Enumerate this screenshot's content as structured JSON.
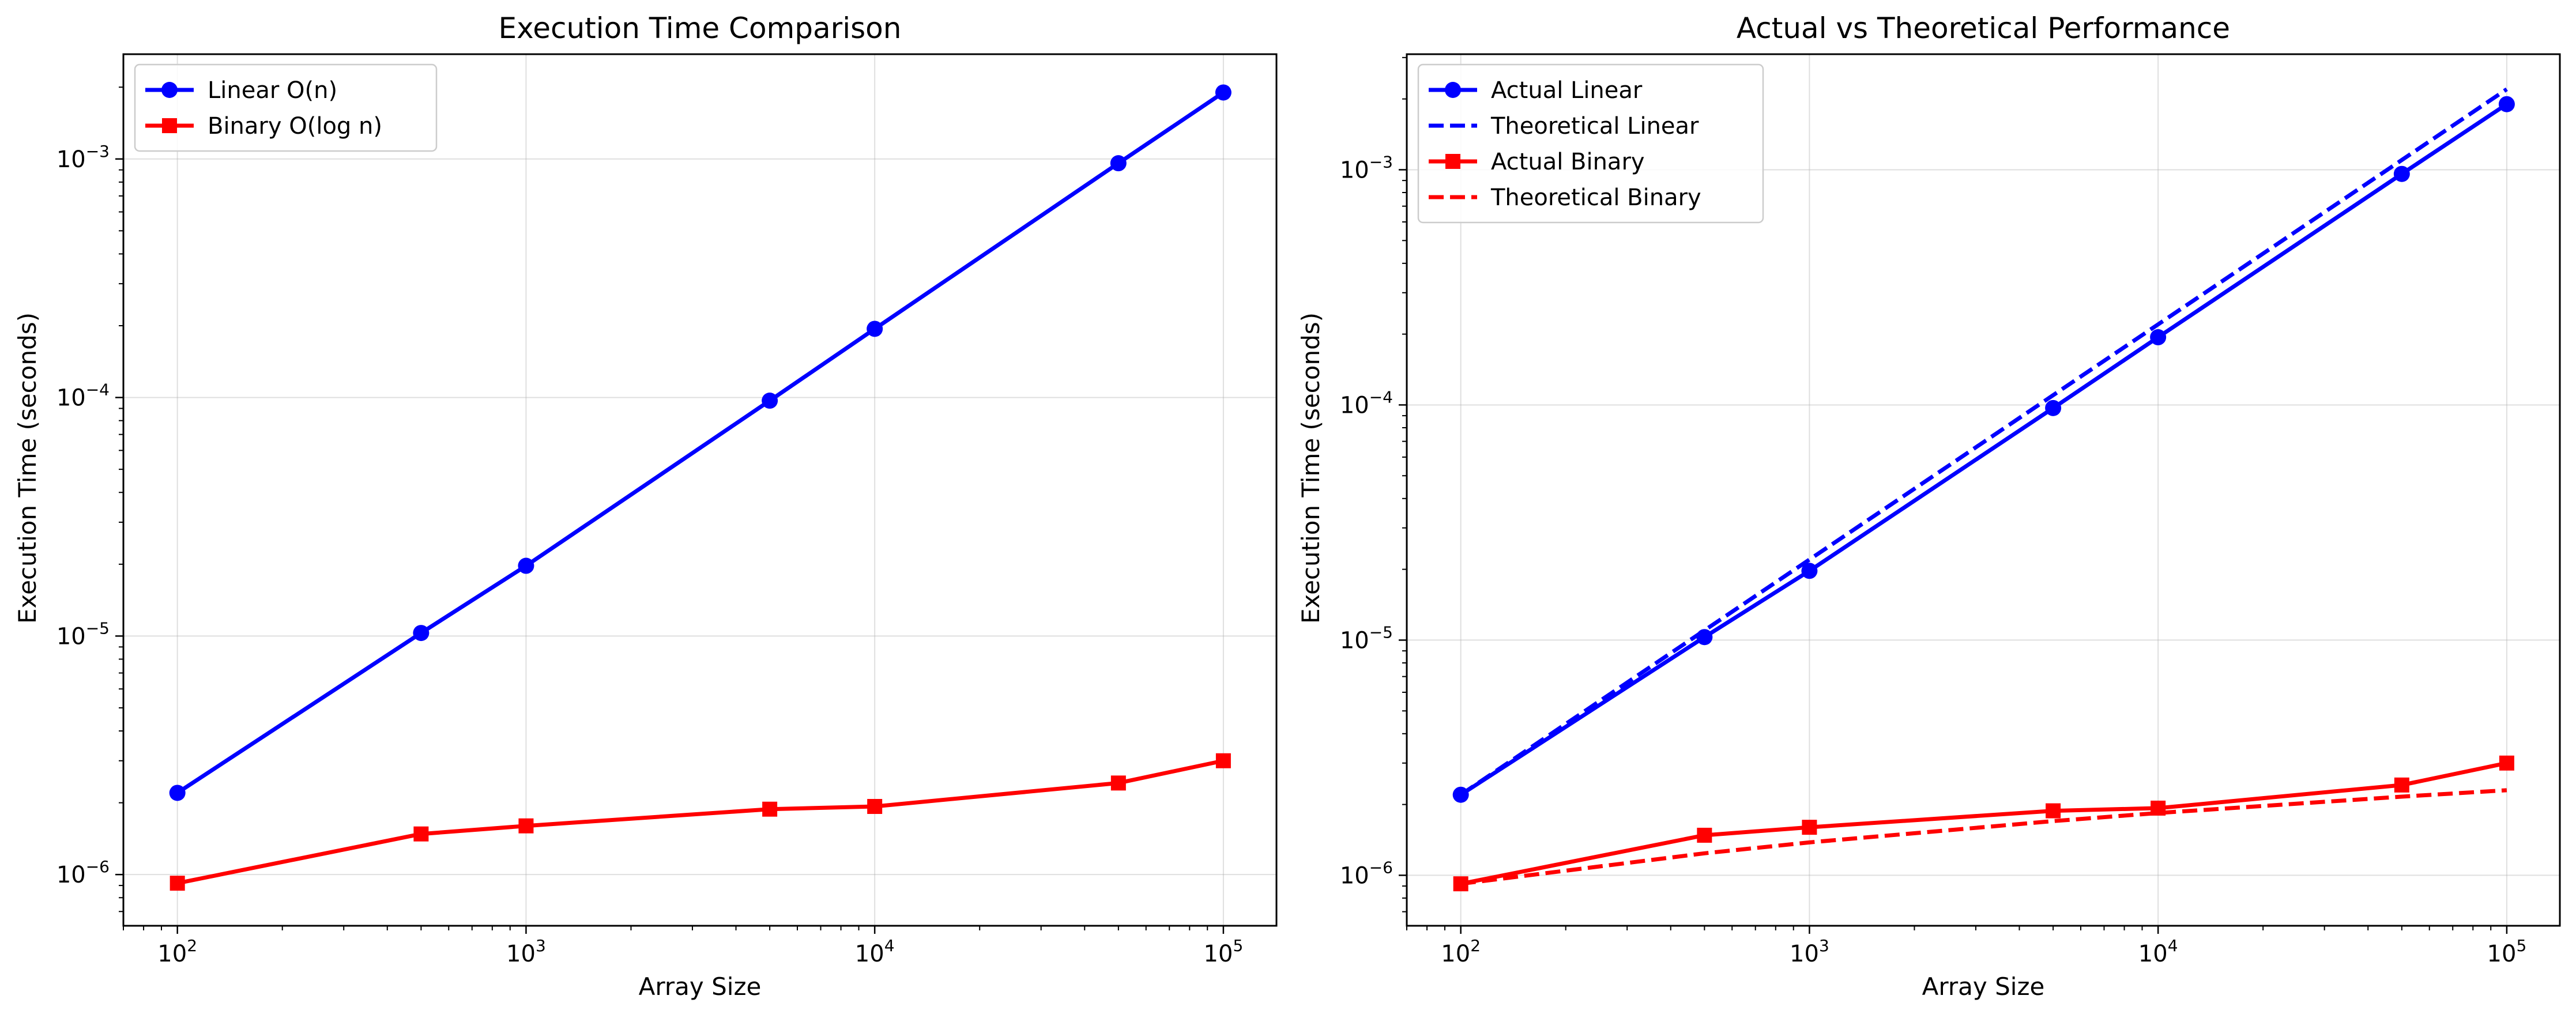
{
  "chart_data": [
    {
      "type": "line",
      "title": "Execution Time Comparison",
      "xlabel": "Array Size",
      "ylabel": "Execution Time (seconds)",
      "xscale": "log",
      "yscale": "log",
      "xlim": [
        70,
        142000
      ],
      "ylim": [
        6.1e-07,
        0.00275
      ],
      "grid": true,
      "legend_position": "upper-left",
      "x": [
        100,
        500,
        1000,
        5000,
        10000,
        50000,
        100000
      ],
      "xticks": [
        {
          "base": "10",
          "exp": "2",
          "value": 100
        },
        {
          "base": "10",
          "exp": "3",
          "value": 1000
        },
        {
          "base": "10",
          "exp": "4",
          "value": 10000
        },
        {
          "base": "10",
          "exp": "5",
          "value": 100000
        }
      ],
      "yticks": [
        {
          "base": "10",
          "exp": "−6",
          "value": 1e-06
        },
        {
          "base": "10",
          "exp": "−5",
          "value": 1e-05
        },
        {
          "base": "10",
          "exp": "−4",
          "value": 0.0001
        },
        {
          "base": "10",
          "exp": "−3",
          "value": 0.001
        }
      ],
      "series": [
        {
          "name": "Linear O(n)",
          "color": "#0000ff",
          "marker": "circle",
          "linestyle": "solid",
          "values": [
            2.2e-06,
            1.03e-05,
            1.97e-05,
            9.7e-05,
            0.000194,
            0.00096,
            0.0019
          ]
        },
        {
          "name": "Binary O(log n)",
          "color": "#ff0000",
          "marker": "square",
          "linestyle": "solid",
          "values": [
            9.2e-07,
            1.48e-06,
            1.6e-06,
            1.88e-06,
            1.93e-06,
            2.42e-06,
            3e-06
          ]
        }
      ]
    },
    {
      "type": "line",
      "title": "Actual vs Theoretical Performance",
      "xlabel": "Array Size",
      "ylabel": "Execution Time (seconds)",
      "xscale": "log",
      "yscale": "log",
      "xlim": [
        70,
        142000
      ],
      "ylim": [
        6.1e-07,
        0.0031
      ],
      "grid": true,
      "legend_position": "upper-left",
      "x": [
        100,
        500,
        1000,
        5000,
        10000,
        50000,
        100000
      ],
      "xticks": [
        {
          "base": "10",
          "exp": "2",
          "value": 100
        },
        {
          "base": "10",
          "exp": "3",
          "value": 1000
        },
        {
          "base": "10",
          "exp": "4",
          "value": 10000
        },
        {
          "base": "10",
          "exp": "5",
          "value": 100000
        }
      ],
      "yticks": [
        {
          "base": "10",
          "exp": "−6",
          "value": 1e-06
        },
        {
          "base": "10",
          "exp": "−5",
          "value": 1e-05
        },
        {
          "base": "10",
          "exp": "−4",
          "value": 0.0001
        },
        {
          "base": "10",
          "exp": "−3",
          "value": 0.001
        }
      ],
      "series": [
        {
          "name": "Actual Linear",
          "color": "#0000ff",
          "marker": "circle",
          "linestyle": "solid",
          "values": [
            2.2e-06,
            1.03e-05,
            1.97e-05,
            9.7e-05,
            0.000194,
            0.00096,
            0.0019
          ]
        },
        {
          "name": "Theoretical Linear",
          "color": "#0000ff",
          "marker": "none",
          "linestyle": "dashed",
          "values": [
            2.2e-06,
            1.1e-05,
            2.2e-05,
            0.00011,
            0.00022,
            0.0011,
            0.0022
          ]
        },
        {
          "name": "Actual Binary",
          "color": "#ff0000",
          "marker": "square",
          "linestyle": "solid",
          "values": [
            9.2e-07,
            1.48e-06,
            1.6e-06,
            1.88e-06,
            1.93e-06,
            2.42e-06,
            3e-06
          ]
        },
        {
          "name": "Theoretical Binary",
          "color": "#ff0000",
          "marker": "none",
          "linestyle": "dashed",
          "values": [
            9.2e-07,
            1.24e-06,
            1.38e-06,
            1.7e-06,
            1.84e-06,
            2.16e-06,
            2.3e-06
          ]
        }
      ]
    }
  ]
}
